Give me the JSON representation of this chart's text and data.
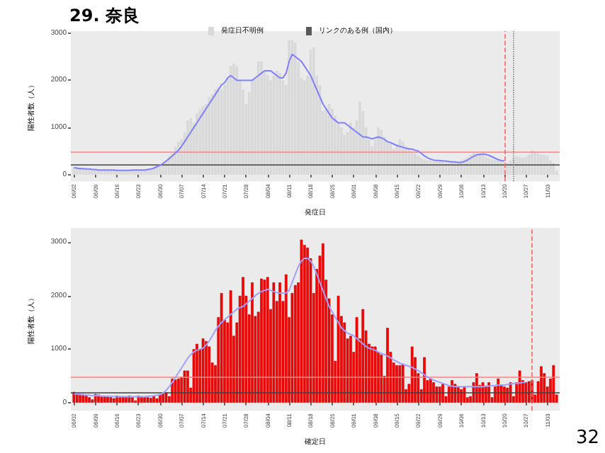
{
  "chart_data": [
    {
      "type": "bar",
      "title": "29. 奈良",
      "xlabel": "発症日",
      "ylabel": "陽性者数（人）",
      "stacked": true,
      "legend": "top",
      "grid": false,
      "x": [
        "--06-02",
        "--06-03",
        "--06-04",
        "--06-05",
        "--06-06",
        "--06-07",
        "--06-08",
        "--06-09",
        "--06-10",
        "--06-11",
        "--06-12",
        "--06-13",
        "--06-14",
        "--06-15",
        "--06-16",
        "--06-17",
        "--06-18",
        "--06-19",
        "--06-20",
        "--06-21",
        "--06-22",
        "--06-23",
        "--06-24",
        "--06-25",
        "--06-26",
        "--06-27",
        "--06-28",
        "--06-29",
        "--06-30",
        "--07-01",
        "--07-02",
        "--07-03",
        "--07-04",
        "--07-05",
        "--07-06",
        "--07-07",
        "--07-08",
        "--07-09",
        "--07-10",
        "--07-11",
        "--07-12",
        "--07-13",
        "--07-14",
        "--07-15",
        "--07-16",
        "--07-17",
        "--07-18",
        "--07-19",
        "--07-20",
        "--07-21",
        "--07-22",
        "--07-23",
        "--07-24",
        "--07-25",
        "--07-26",
        "--07-27",
        "--07-28",
        "--07-29",
        "--07-30",
        "--07-31",
        "--08-01",
        "--08-02",
        "--08-03",
        "--08-04",
        "--08-05",
        "--08-06",
        "--08-07",
        "--08-08",
        "--08-09",
        "--08-10",
        "--08-11",
        "--08-12",
        "--08-13",
        "--08-14",
        "--08-15",
        "--08-16",
        "--08-17",
        "--08-18",
        "--08-19",
        "--08-20",
        "--08-21",
        "--08-22",
        "--08-23",
        "--08-24",
        "--08-25",
        "--08-26",
        "--08-27",
        "--08-28",
        "--08-29",
        "--08-30",
        "--08-31",
        "--09-01",
        "--09-02",
        "--09-03",
        "--09-04",
        "--09-05",
        "--09-06",
        "--09-07",
        "--09-08",
        "--09-09",
        "--09-10",
        "--09-11",
        "--09-12",
        "--09-13",
        "--09-14",
        "--09-15",
        "--09-16",
        "--09-17",
        "--09-18",
        "--09-19",
        "--09-20",
        "--09-21",
        "--09-22",
        "--09-23",
        "--09-24",
        "--09-25",
        "--09-26",
        "--09-27",
        "--09-28",
        "--09-29",
        "--09-30",
        "--10-01",
        "--10-02",
        "--10-03",
        "--10-04",
        "--10-05",
        "--10-06",
        "--10-07",
        "--10-08",
        "--10-09",
        "--10-10",
        "--10-11",
        "--10-12",
        "--10-13",
        "--10-14",
        "--10-15",
        "--10-16",
        "--10-17",
        "--10-18",
        "--10-19",
        "--10-20",
        "--10-21",
        "--10-22",
        "--10-23",
        "--10-24",
        "--10-25",
        "--10-26",
        "--10-27",
        "--10-28",
        "--10-29",
        "--10-30",
        "--10-31",
        "--11-01",
        "--11-02",
        "--11-03",
        "--11-04",
        "--11-05",
        "--11-06"
      ],
      "xlim": [
        "--06-01",
        "--11-07"
      ],
      "xticks": [
        {
          "value": "--06-02",
          "label": "06/02"
        },
        {
          "value": "--06-09",
          "label": "06/09"
        },
        {
          "value": "--06-16",
          "label": "06/16"
        },
        {
          "value": "--06-23",
          "label": "06/23"
        },
        {
          "value": "--06-30",
          "label": "06/30"
        },
        {
          "value": "--07-07",
          "label": "07/07"
        },
        {
          "value": "--07-14",
          "label": "07/14"
        },
        {
          "value": "--07-21",
          "label": "07/21"
        },
        {
          "value": "--07-28",
          "label": "07/28"
        },
        {
          "value": "--08-04",
          "label": "08/04"
        },
        {
          "value": "--08-11",
          "label": "08/11"
        },
        {
          "value": "--08-18",
          "label": "08/18"
        },
        {
          "value": "--08-25",
          "label": "08/25"
        },
        {
          "value": "--09-01",
          "label": "09/01"
        },
        {
          "value": "--09-08",
          "label": "09/08"
        },
        {
          "value": "--09-15",
          "label": "09/15"
        },
        {
          "value": "--09-22",
          "label": "09/22"
        },
        {
          "value": "--09-29",
          "label": "09/29"
        },
        {
          "value": "--10-06",
          "label": "10/06"
        },
        {
          "value": "--10-13",
          "label": "10/13"
        },
        {
          "value": "--10-20",
          "label": "10/20"
        },
        {
          "value": "--10-27",
          "label": "10/27"
        },
        {
          "value": "--11-03",
          "label": "11/03"
        }
      ],
      "ylim": [
        -140,
        3040
      ],
      "yticks": [
        0,
        1000,
        2000,
        3000
      ],
      "series": [
        {
          "name": "発症日不明例",
          "color": "#d9d9d9",
          "values": [
            150,
            130,
            120,
            110,
            110,
            100,
            100,
            110,
            100,
            100,
            90,
            100,
            90,
            100,
            100,
            90,
            100,
            90,
            100,
            90,
            100,
            100,
            110,
            100,
            120,
            130,
            150,
            180,
            200,
            250,
            300,
            400,
            450,
            600,
            700,
            750,
            900,
            1150,
            1200,
            1100,
            1300,
            1400,
            1450,
            1500,
            1650,
            1700,
            1800,
            1850,
            1800,
            1900,
            2050,
            2300,
            2350,
            2300,
            2000,
            1800,
            1500,
            1750,
            2000,
            2050,
            2400,
            2400,
            2200,
            2100,
            2000,
            2100,
            2200,
            2150,
            2000,
            1900,
            2850,
            2850,
            2800,
            2400,
            2050,
            2000,
            2100,
            2650,
            2700,
            2100,
            1900,
            1350,
            1400,
            1500,
            1400,
            1250,
            1100,
            1000,
            850,
            900,
            1100,
            1000,
            1150,
            1550,
            1350,
            1000,
            750,
            600,
            750,
            1000,
            950,
            800,
            700,
            650,
            550,
            650,
            750,
            700,
            600,
            550,
            500,
            450,
            400,
            350,
            320,
            300,
            300,
            280,
            280,
            280,
            270,
            260,
            250,
            260,
            270,
            280,
            300,
            330,
            370,
            420,
            460,
            450,
            450,
            420,
            380,
            350,
            330,
            310,
            300,
            280,
            260,
            250,
            300,
            350,
            380,
            370,
            360,
            380,
            420,
            520,
            500,
            450,
            420,
            420,
            400,
            300,
            250,
            80
          ]
        },
        {
          "name": "リンクのある例（国内）",
          "color": "#595959",
          "values": [
            null,
            null,
            null,
            null,
            null,
            null,
            null,
            null,
            null,
            null,
            null,
            null,
            null,
            null,
            null,
            null,
            null,
            null,
            null,
            null,
            null,
            null,
            null,
            null,
            null,
            null,
            null,
            null,
            null,
            null,
            null,
            null,
            null,
            null,
            null,
            null,
            null,
            null,
            null,
            null,
            null,
            null,
            null,
            null,
            null,
            null,
            null,
            null,
            null,
            null,
            null,
            null,
            null,
            null,
            null,
            null,
            null,
            null,
            null,
            null,
            null,
            null,
            null,
            null,
            null,
            null,
            null,
            null,
            null,
            null,
            null,
            null,
            null,
            null,
            null,
            null,
            null,
            null,
            null,
            null,
            null,
            null,
            null,
            null,
            null,
            null,
            null,
            null,
            null,
            null,
            null,
            null,
            null,
            null,
            null,
            null,
            null,
            null,
            null,
            null,
            null,
            null,
            null,
            null,
            null,
            null,
            null,
            null,
            null,
            null,
            null,
            null,
            null,
            null,
            null,
            null,
            null,
            null,
            null,
            null,
            null,
            null,
            null,
            null,
            null,
            null,
            null,
            null,
            null,
            null,
            null,
            null,
            null,
            null,
            null,
            null,
            null,
            null,
            null,
            null,
            null,
            null,
            null,
            null,
            null,
            null,
            null,
            null,
            null,
            null,
            null,
            null,
            null,
            null,
            null,
            null,
            null,
            null
          ]
        },
        {
          "type": "line",
          "color": "#8080ff",
          "values": [
            150,
            140,
            130,
            130,
            120,
            120,
            110,
            110,
            100,
            100,
            100,
            100,
            100,
            100,
            90,
            90,
            90,
            90,
            90,
            100,
            100,
            100,
            100,
            100,
            110,
            120,
            140,
            170,
            200,
            240,
            290,
            340,
            400,
            460,
            520,
            600,
            700,
            800,
            900,
            1000,
            1100,
            1200,
            1300,
            1400,
            1500,
            1600,
            1700,
            1800,
            1900,
            1950,
            2050,
            2100,
            2050,
            2000,
            2000,
            2000,
            2000,
            2000,
            2000,
            2050,
            2100,
            2150,
            2200,
            2200,
            2200,
            2150,
            2100,
            2050,
            2050,
            2150,
            2400,
            2550,
            2500,
            2450,
            2400,
            2300,
            2200,
            2100,
            1950,
            1800,
            1650,
            1500,
            1400,
            1300,
            1200,
            1150,
            1100,
            1100,
            1100,
            1050,
            1000,
            950,
            900,
            850,
            800,
            800,
            780,
            760,
            780,
            800,
            780,
            750,
            700,
            680,
            650,
            620,
            600,
            580,
            560,
            550,
            540,
            520,
            500,
            450,
            400,
            360,
            330,
            310,
            300,
            300,
            290,
            290,
            280,
            270,
            270,
            260,
            260,
            280,
            310,
            350,
            390,
            420,
            430,
            440,
            430,
            410,
            380,
            350,
            320,
            300,
            290,
            null,
            null,
            null,
            null,
            null,
            null,
            null,
            null,
            null,
            null,
            null,
            null,
            null,
            null,
            null,
            null,
            null
          ]
        }
      ],
      "ref_lines": [
        {
          "axis": "y",
          "value": 480,
          "color": "#ff8080",
          "line_style": "solid"
        },
        {
          "axis": "y",
          "value": 200,
          "color": "#404040",
          "line_style": "solid"
        },
        {
          "axis": "x",
          "value": "--10-20",
          "color": "#ff6060",
          "line_style": "dashed"
        },
        {
          "axis": "x",
          "value": "--10-23",
          "color": "#808080",
          "line_style": "dotted"
        }
      ]
    },
    {
      "type": "bar",
      "xlabel": "確定日",
      "ylabel": "陽性者数（人）",
      "grid": false,
      "annotations": [
        "32"
      ],
      "x": [
        "--06-02",
        "--06-03",
        "--06-04",
        "--06-05",
        "--06-06",
        "--06-07",
        "--06-08",
        "--06-09",
        "--06-10",
        "--06-11",
        "--06-12",
        "--06-13",
        "--06-14",
        "--06-15",
        "--06-16",
        "--06-17",
        "--06-18",
        "--06-19",
        "--06-20",
        "--06-21",
        "--06-22",
        "--06-23",
        "--06-24",
        "--06-25",
        "--06-26",
        "--06-27",
        "--06-28",
        "--06-29",
        "--06-30",
        "--07-01",
        "--07-02",
        "--07-03",
        "--07-04",
        "--07-05",
        "--07-06",
        "--07-07",
        "--07-08",
        "--07-09",
        "--07-10",
        "--07-11",
        "--07-12",
        "--07-13",
        "--07-14",
        "--07-15",
        "--07-16",
        "--07-17",
        "--07-18",
        "--07-19",
        "--07-20",
        "--07-21",
        "--07-22",
        "--07-23",
        "--07-24",
        "--07-25",
        "--07-26",
        "--07-27",
        "--07-28",
        "--07-29",
        "--07-30",
        "--07-31",
        "--08-01",
        "--08-02",
        "--08-03",
        "--08-04",
        "--08-05",
        "--08-06",
        "--08-07",
        "--08-08",
        "--08-09",
        "--08-10",
        "--08-11",
        "--08-12",
        "--08-13",
        "--08-14",
        "--08-15",
        "--08-16",
        "--08-17",
        "--08-18",
        "--08-19",
        "--08-20",
        "--08-21",
        "--08-22",
        "--08-23",
        "--08-24",
        "--08-25",
        "--08-26",
        "--08-27",
        "--08-28",
        "--08-29",
        "--08-30",
        "--08-31",
        "--09-01",
        "--09-02",
        "--09-03",
        "--09-04",
        "--09-05",
        "--09-06",
        "--09-07",
        "--09-08",
        "--09-09",
        "--09-10",
        "--09-11",
        "--09-12",
        "--09-13",
        "--09-14",
        "--09-15",
        "--09-16",
        "--09-17",
        "--09-18",
        "--09-19",
        "--09-20",
        "--09-21",
        "--09-22",
        "--09-23",
        "--09-24",
        "--09-25",
        "--09-26",
        "--09-27",
        "--09-28",
        "--09-29",
        "--09-30",
        "--10-01",
        "--10-02",
        "--10-03",
        "--10-04",
        "--10-05",
        "--10-06",
        "--10-07",
        "--10-08",
        "--10-09",
        "--10-10",
        "--10-11",
        "--10-12",
        "--10-13",
        "--10-14",
        "--10-15",
        "--10-16",
        "--10-17",
        "--10-18",
        "--10-19",
        "--10-20",
        "--10-21",
        "--10-22",
        "--10-23",
        "--10-24",
        "--10-25",
        "--10-26",
        "--10-27",
        "--10-28",
        "--10-29",
        "--10-30",
        "--10-31",
        "--11-01",
        "--11-02",
        "--11-03",
        "--11-04",
        "--11-05",
        "--11-06"
      ],
      "xlim": [
        "--06-01",
        "--11-07"
      ],
      "xticks": [
        {
          "value": "--06-02",
          "label": "06/02"
        },
        {
          "value": "--06-09",
          "label": "06/09"
        },
        {
          "value": "--06-16",
          "label": "06/16"
        },
        {
          "value": "--06-23",
          "label": "06/23"
        },
        {
          "value": "--06-30",
          "label": "06/30"
        },
        {
          "value": "--07-07",
          "label": "07/07"
        },
        {
          "value": "--07-14",
          "label": "07/14"
        },
        {
          "value": "--07-21",
          "label": "07/21"
        },
        {
          "value": "--07-28",
          "label": "07/28"
        },
        {
          "value": "--08-04",
          "label": "08/04"
        },
        {
          "value": "--08-11",
          "label": "08/11"
        },
        {
          "value": "--08-18",
          "label": "08/18"
        },
        {
          "value": "--08-25",
          "label": "08/25"
        },
        {
          "value": "--09-01",
          "label": "09/01"
        },
        {
          "value": "--09-08",
          "label": "09/08"
        },
        {
          "value": "--09-15",
          "label": "09/15"
        },
        {
          "value": "--09-22",
          "label": "09/22"
        },
        {
          "value": "--09-29",
          "label": "09/29"
        },
        {
          "value": "--10-06",
          "label": "10/06"
        },
        {
          "value": "--10-13",
          "label": "10/13"
        },
        {
          "value": "--10-20",
          "label": "10/20"
        },
        {
          "value": "--10-27",
          "label": "10/27"
        },
        {
          "value": "--11-03",
          "label": "11/03"
        }
      ],
      "ylim": [
        -150,
        3270
      ],
      "yticks": [
        0,
        1000,
        2000,
        3000
      ],
      "series": [
        {
          "color": "#ff0000",
          "values": [
            200,
            170,
            160,
            140,
            130,
            100,
            60,
            160,
            150,
            130,
            120,
            110,
            100,
            80,
            130,
            120,
            120,
            110,
            130,
            100,
            40,
            130,
            110,
            100,
            100,
            90,
            120,
            80,
            150,
            170,
            190,
            120,
            450,
            430,
            450,
            480,
            600,
            600,
            280,
            1000,
            1100,
            1000,
            1200,
            1150,
            1050,
            750,
            700,
            1600,
            2050,
            1550,
            1500,
            2100,
            1250,
            1500,
            2000,
            2350,
            2000,
            1650,
            2250,
            1620,
            1700,
            2320,
            2300,
            2350,
            1750,
            2250,
            1900,
            2250,
            1900,
            2400,
            1600,
            2050,
            2200,
            2250,
            3050,
            2950,
            2900,
            2700,
            2050,
            2500,
            2750,
            2980,
            2300,
            1950,
            1650,
            780,
            2000,
            1620,
            1500,
            1200,
            1250,
            950,
            1600,
            1200,
            1750,
            1350,
            1100,
            1050,
            1050,
            950,
            900,
            500,
            1400,
            950,
            750,
            700,
            700,
            720,
            250,
            350,
            1050,
            850,
            550,
            250,
            850,
            420,
            450,
            380,
            300,
            300,
            350,
            120,
            300,
            420,
            350,
            300,
            250,
            300,
            100,
            120,
            380,
            550,
            330,
            380,
            300,
            380,
            100,
            300,
            450,
            340,
            300,
            280,
            380,
            120,
            380,
            600,
            420,
            380,
            400,
            420,
            150,
            400,
            680,
            550,
            300,
            450,
            700,
            150
          ]
        },
        {
          "type": "line",
          "color": "#a0a0ff",
          "values": [
            160,
            160,
            150,
            150,
            140,
            140,
            130,
            130,
            130,
            120,
            120,
            120,
            120,
            110,
            110,
            110,
            110,
            110,
            110,
            110,
            110,
            110,
            110,
            110,
            120,
            120,
            130,
            140,
            150,
            180,
            230,
            300,
            380,
            470,
            560,
            650,
            740,
            830,
            900,
            950,
            980,
            1000,
            1020,
            1080,
            1150,
            1250,
            1350,
            1430,
            1500,
            1550,
            1600,
            1650,
            1700,
            1750,
            1780,
            1800,
            1850,
            1900,
            1950,
            2000,
            2050,
            2080,
            2100,
            2120,
            2100,
            2080,
            2060,
            2050,
            2050,
            2050,
            2100,
            2250,
            2400,
            2550,
            2650,
            2700,
            2700,
            2650,
            2550,
            2400,
            2250,
            2100,
            1950,
            1800,
            1700,
            1600,
            1500,
            1400,
            1350,
            1300,
            1280,
            1250,
            1200,
            1150,
            1100,
            1050,
            1020,
            1000,
            980,
            950,
            920,
            900,
            870,
            840,
            800,
            770,
            740,
            720,
            700,
            680,
            660,
            630,
            600,
            560,
            520,
            480,
            450,
            420,
            400,
            380,
            360,
            340,
            320,
            310,
            300,
            300,
            300,
            300,
            300,
            300,
            300,
            300,
            300,
            300,
            310,
            310,
            320,
            320,
            330,
            330,
            330,
            340,
            350,
            360,
            360,
            370,
            380,
            380,
            null,
            null,
            null,
            null,
            null,
            null,
            null,
            null,
            null,
            null
          ]
        }
      ],
      "ref_lines": [
        {
          "axis": "y",
          "value": 480,
          "color": "#ff8080",
          "line_style": "solid"
        },
        {
          "axis": "y",
          "value": 200,
          "color": "#404040",
          "line_style": "solid"
        },
        {
          "axis": "x",
          "value": "--10-29",
          "color": "#ff6060",
          "line_style": "dashed"
        }
      ]
    }
  ]
}
